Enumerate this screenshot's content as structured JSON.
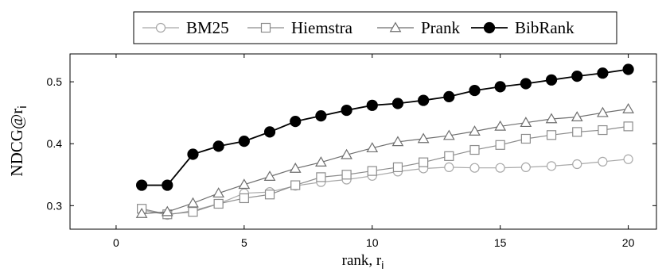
{
  "chart_data": {
    "type": "line",
    "title": "",
    "xlabel": {
      "main": "rank, r",
      "sub": "i"
    },
    "ylabel": {
      "main": "NDCG@r",
      "sub": "i"
    },
    "xlim": [
      -1.8,
      21.1
    ],
    "ylim": [
      0.262,
      0.545
    ],
    "xticks": [
      0,
      5,
      10,
      15,
      20
    ],
    "yticks": [
      0.3,
      0.4,
      0.5
    ],
    "xtick_labels": [
      "0",
      "5",
      "10",
      "15",
      "20"
    ],
    "ytick_labels": [
      "0.3",
      "0.4",
      "0.5"
    ],
    "grid": false,
    "legend_position": "top-center",
    "x": [
      1,
      2,
      3,
      4,
      5,
      6,
      7,
      8,
      9,
      10,
      11,
      12,
      13,
      14,
      15,
      16,
      17,
      18,
      19,
      20
    ],
    "series": [
      {
        "name": "BM25",
        "marker": "circle",
        "color": "#a8a8a8",
        "fill": "#ffffff",
        "values": [
          0.293,
          0.285,
          0.292,
          0.303,
          0.32,
          0.322,
          0.332,
          0.338,
          0.342,
          0.348,
          0.355,
          0.36,
          0.362,
          0.361,
          0.361,
          0.362,
          0.364,
          0.367,
          0.371,
          0.375
        ]
      },
      {
        "name": "Hiemstra",
        "marker": "square",
        "color": "#8c8c8c",
        "fill": "#ffffff",
        "values": [
          0.295,
          0.286,
          0.29,
          0.303,
          0.312,
          0.318,
          0.333,
          0.346,
          0.35,
          0.356,
          0.362,
          0.37,
          0.38,
          0.39,
          0.398,
          0.408,
          0.414,
          0.419,
          0.422,
          0.428
        ]
      },
      {
        "name": "Prank",
        "marker": "triangle",
        "color": "#6e6e6e",
        "fill": "#ffffff",
        "values": [
          0.287,
          0.29,
          0.304,
          0.32,
          0.334,
          0.347,
          0.36,
          0.37,
          0.382,
          0.393,
          0.403,
          0.408,
          0.413,
          0.42,
          0.428,
          0.434,
          0.44,
          0.443,
          0.45,
          0.456
        ]
      },
      {
        "name": "BibRank",
        "marker": "circle",
        "color": "#000000",
        "fill": "#000000",
        "values": [
          0.333,
          0.333,
          0.383,
          0.396,
          0.404,
          0.419,
          0.436,
          0.445,
          0.454,
          0.462,
          0.465,
          0.47,
          0.476,
          0.486,
          0.492,
          0.497,
          0.503,
          0.509,
          0.514,
          0.52
        ]
      }
    ]
  }
}
